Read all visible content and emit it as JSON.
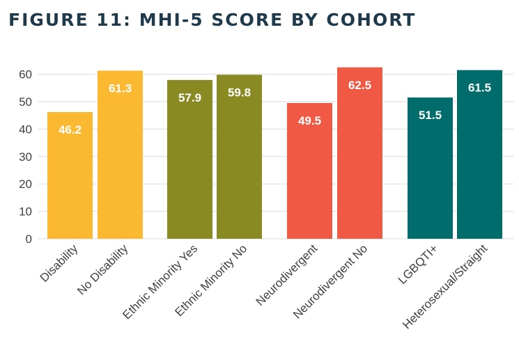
{
  "chart_data": {
    "type": "bar",
    "title": "FIGURE 11: MHI-5 SCORE BY COHORT",
    "xlabel": "",
    "ylabel": "",
    "ylim": [
      0,
      60
    ],
    "yticks": [
      0,
      10,
      20,
      30,
      40,
      50,
      60
    ],
    "grid": true,
    "categories": [
      "Disability",
      "No Disability",
      "Ethnic Minority Yes",
      "Ethnic Minority No",
      "Neurodivergent",
      "Neurodivergent No",
      "LGBQTI+",
      "Heterosexual/Straight"
    ],
    "values": [
      46.2,
      61.3,
      57.9,
      59.8,
      49.5,
      62.5,
      51.5,
      61.5
    ],
    "value_labels": [
      "46.2",
      "61.3",
      "57.9",
      "59.8",
      "49.5",
      "62.5",
      "51.5",
      "61.5"
    ],
    "colors": [
      "#fbb831",
      "#fbb831",
      "#8a8a23",
      "#8a8a23",
      "#f05a45",
      "#f05a45",
      "#006c6c",
      "#006c6c"
    ]
  }
}
